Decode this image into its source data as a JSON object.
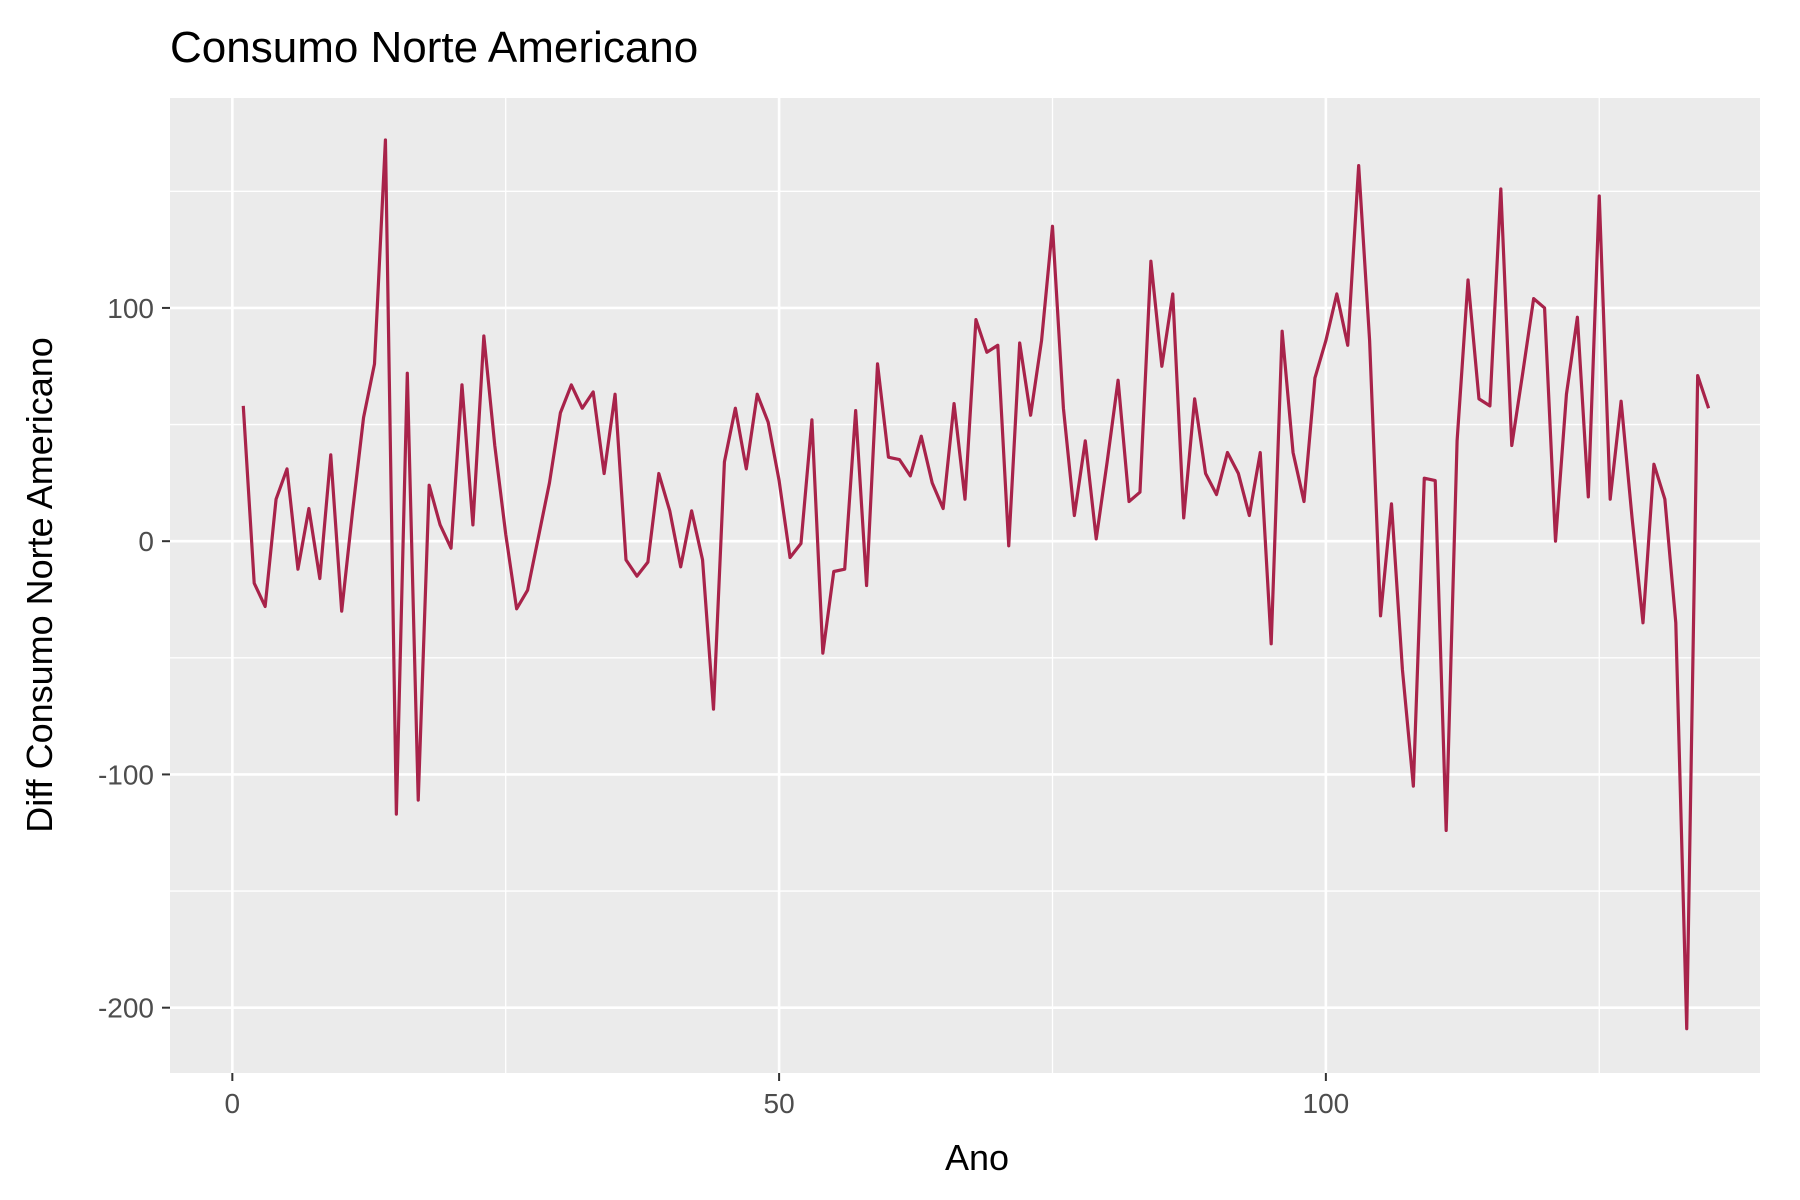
{
  "chart_data": {
    "type": "line",
    "title": "Consumo Norte Americano",
    "xlabel": "Ano",
    "ylabel": "Diff Consumo Norte Americano",
    "xlim": [
      -5.7,
      139.7
    ],
    "ylim": [
      -228,
      190
    ],
    "x_ticks": [
      0,
      50,
      100
    ],
    "x_minor_ticks": [
      25,
      75,
      125
    ],
    "y_ticks": [
      -200,
      -100,
      0,
      100
    ],
    "y_minor_ticks": [
      -150,
      -50,
      50,
      150
    ],
    "grid": true,
    "legend": "none",
    "colors": {
      "line": "#A8234A",
      "panel_background": "#EBEBEB",
      "grid": "#FFFFFF",
      "tick_text": "#4D4D4D",
      "tick_mark": "#333333"
    },
    "series": [
      {
        "x": [
          1,
          2,
          3,
          4,
          5,
          6,
          7,
          8,
          9,
          10,
          11,
          12,
          13,
          14,
          15,
          16,
          17,
          18,
          19,
          20,
          21,
          22,
          23,
          24,
          25,
          26,
          27,
          28,
          29,
          30,
          31,
          32,
          33,
          34,
          35,
          36,
          37,
          38,
          39,
          40,
          41,
          42,
          43,
          44,
          45,
          46,
          47,
          48,
          49,
          50,
          51,
          52,
          53,
          54,
          55,
          56,
          57,
          58,
          59,
          60,
          61,
          62,
          63,
          64,
          65,
          66,
          67,
          68,
          69,
          70,
          71,
          72,
          73,
          74,
          75,
          76,
          77,
          78,
          79,
          80,
          81,
          82,
          83,
          84,
          85,
          86,
          87,
          88,
          89,
          90,
          91,
          92,
          93,
          94,
          95,
          96,
          97,
          98,
          99,
          100,
          101,
          102,
          103,
          104,
          105,
          106,
          107,
          108,
          109,
          110,
          111,
          112,
          113,
          114,
          115,
          116,
          117,
          118,
          119,
          120,
          121,
          122,
          123,
          124,
          125,
          126,
          127,
          128,
          129,
          130,
          131,
          132,
          133,
          134,
          135
        ],
        "values": [
          58,
          -18,
          -28,
          18,
          31,
          -12,
          14,
          -16,
          37,
          -30,
          13,
          53,
          76,
          172,
          -117,
          72,
          -111,
          24,
          7,
          -3,
          67,
          7,
          88,
          41,
          3,
          -29,
          -21,
          2,
          25,
          55,
          67,
          57,
          64,
          29,
          63,
          -8,
          -15,
          -9,
          29,
          13,
          -11,
          13,
          -8,
          -72,
          34,
          57,
          31,
          63,
          51,
          26,
          -7,
          -1,
          52,
          -48,
          -13,
          -12,
          56,
          -19,
          76,
          36,
          35,
          28,
          45,
          25,
          14,
          59,
          18,
          95,
          81,
          84,
          -2,
          85,
          54,
          86,
          135,
          57,
          11,
          43,
          1,
          34,
          69,
          17,
          21,
          120,
          75,
          106,
          10,
          61,
          29,
          20,
          38,
          29,
          11,
          38,
          -44,
          90,
          38,
          17,
          70,
          86,
          106,
          84,
          161,
          86,
          -32,
          16,
          -55,
          -105,
          27,
          26,
          -124,
          43,
          112,
          61,
          58,
          151,
          41,
          72,
          104,
          100,
          0,
          63,
          96,
          19,
          148,
          18,
          60,
          10,
          -35,
          33,
          18,
          -35,
          -209,
          71,
          57
        ]
      }
    ]
  }
}
